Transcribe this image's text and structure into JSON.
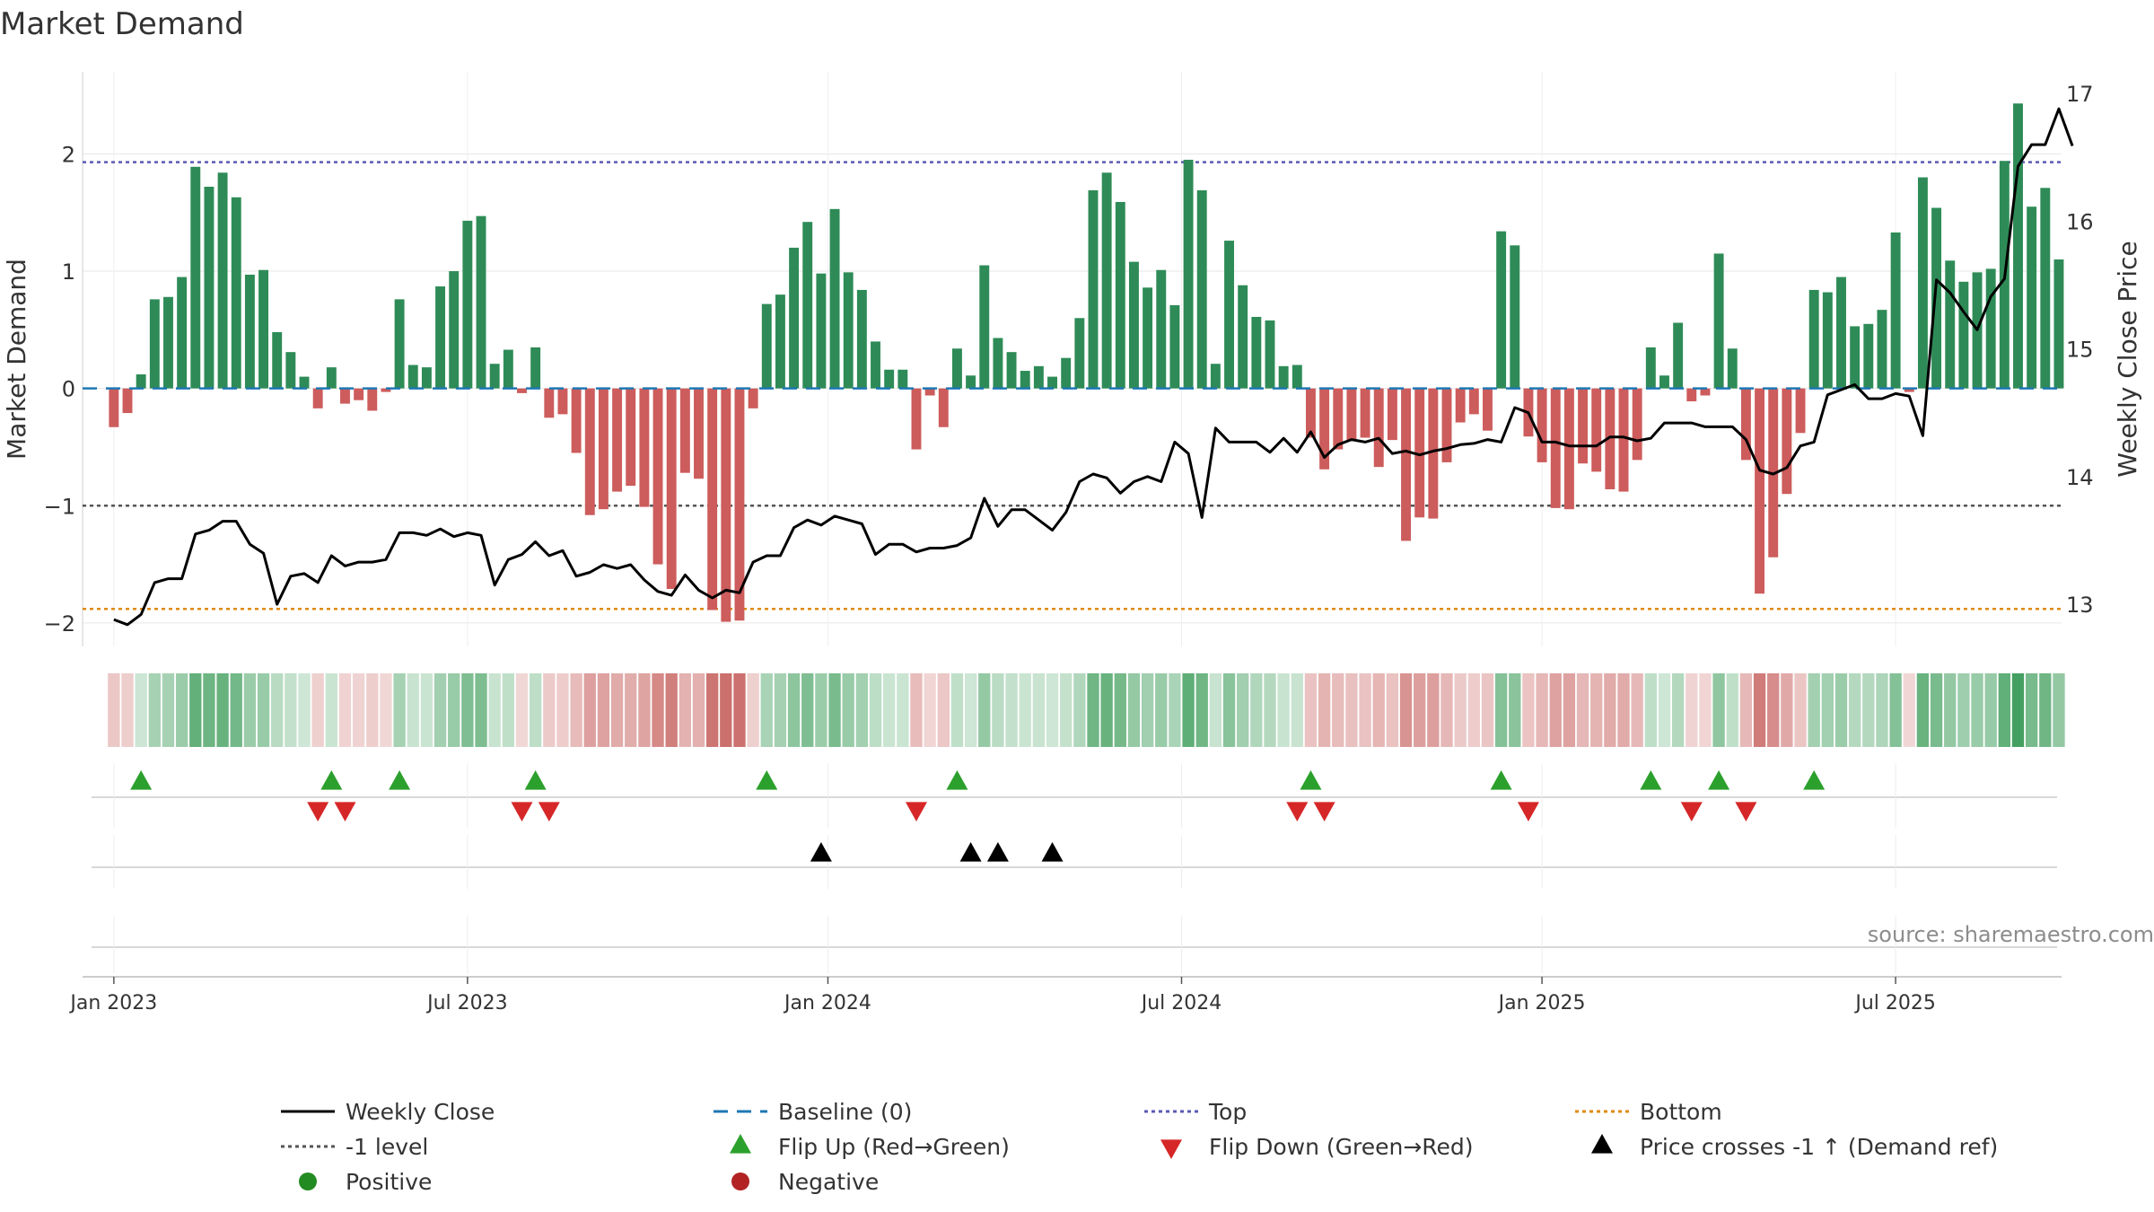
{
  "chart_data": {
    "type": "bar",
    "title": "Market Demand",
    "ylabel_left": "Market Demand",
    "ylabel_right": "Weekly Close Price",
    "ylim_left": [
      -2.2,
      2.7
    ],
    "ylim_right": [
      12.67,
      17.17
    ],
    "yticks_left": [
      {
        "v": 2,
        "label": "2"
      },
      {
        "v": 1,
        "label": "1"
      },
      {
        "v": 0,
        "label": "0"
      },
      {
        "v": -1,
        "label": "−1"
      },
      {
        "v": -2,
        "label": "−2"
      }
    ],
    "yticks_right": [
      {
        "v": 17,
        "label": "17"
      },
      {
        "v": 16,
        "label": "16"
      },
      {
        "v": 15,
        "label": "15"
      },
      {
        "v": 14,
        "label": "14"
      },
      {
        "v": 13,
        "label": "13"
      }
    ],
    "x_range": [
      -2.3,
      143.2
    ],
    "x_ticks": [
      {
        "x": 0,
        "label": "Jan 2023"
      },
      {
        "x": 26,
        "label": "Jul 2023"
      },
      {
        "x": 52.5,
        "label": "Jan 2024"
      },
      {
        "x": 78.5,
        "label": "Jul 2024"
      },
      {
        "x": 105,
        "label": "Jan 2025"
      },
      {
        "x": 131,
        "label": "Jul 2025"
      }
    ],
    "reference_lines": {
      "top": 1.93,
      "minus_one": -1.0,
      "bottom": -1.88,
      "baseline": 0
    },
    "demand": [
      -0.33,
      -0.21,
      0.12,
      0.76,
      0.78,
      0.95,
      1.89,
      1.72,
      1.84,
      1.63,
      0.97,
      1.01,
      0.48,
      0.31,
      0.1,
      -0.17,
      0.18,
      -0.13,
      -0.1,
      -0.19,
      -0.03,
      0.76,
      0.2,
      0.18,
      0.87,
      1.0,
      1.43,
      1.47,
      0.21,
      0.33,
      -0.04,
      0.35,
      -0.25,
      -0.22,
      -0.55,
      -1.08,
      -1.03,
      -0.88,
      -0.83,
      -1.01,
      -1.5,
      -1.71,
      -0.72,
      -0.77,
      -1.89,
      -1.99,
      -1.98,
      -0.17,
      0.72,
      0.8,
      1.2,
      1.42,
      0.98,
      1.53,
      0.99,
      0.84,
      0.4,
      0.16,
      0.16,
      -0.52,
      -0.06,
      -0.33,
      0.34,
      0.11,
      1.05,
      0.43,
      0.31,
      0.15,
      0.19,
      0.1,
      0.26,
      0.6,
      1.69,
      1.84,
      1.59,
      1.08,
      0.86,
      1.01,
      0.71,
      1.95,
      1.69,
      0.21,
      1.26,
      0.88,
      0.61,
      0.58,
      0.19,
      0.2,
      -0.42,
      -0.69,
      -0.52,
      -0.45,
      -0.42,
      -0.67,
      -0.44,
      -1.3,
      -1.1,
      -1.11,
      -0.63,
      -0.29,
      -0.22,
      -0.36,
      1.34,
      1.22,
      -0.41,
      -0.63,
      -1.02,
      -1.03,
      -0.64,
      -0.71,
      -0.86,
      -0.88,
      -0.61,
      0.35,
      0.11,
      0.56,
      -0.11,
      -0.06,
      1.15,
      0.34,
      -0.61,
      -1.75,
      -1.44,
      -0.9,
      -0.38,
      0.84,
      0.82,
      0.95,
      0.53,
      0.55,
      0.67,
      1.33,
      -0.03,
      1.8,
      1.54,
      1.09,
      0.91,
      0.99,
      1.02,
      1.94,
      2.43,
      1.55,
      1.71,
      1.1
    ],
    "weekly_close": [
      12.88,
      12.84,
      12.92,
      13.17,
      13.2,
      13.2,
      13.55,
      13.58,
      13.65,
      13.65,
      13.47,
      13.4,
      13.0,
      13.22,
      13.24,
      13.17,
      13.38,
      13.3,
      13.33,
      13.33,
      13.35,
      13.56,
      13.56,
      13.54,
      13.59,
      13.53,
      13.56,
      13.54,
      13.15,
      13.35,
      13.39,
      13.49,
      13.38,
      13.42,
      13.22,
      13.25,
      13.31,
      13.28,
      13.31,
      13.19,
      13.1,
      13.07,
      13.23,
      13.11,
      13.05,
      13.11,
      13.09,
      13.33,
      13.38,
      13.38,
      13.6,
      13.66,
      13.62,
      13.69,
      13.66,
      13.63,
      13.39,
      13.47,
      13.47,
      13.41,
      13.44,
      13.44,
      13.46,
      13.52,
      13.83,
      13.61,
      13.74,
      13.74,
      13.66,
      13.58,
      13.72,
      13.96,
      14.02,
      13.99,
      13.87,
      13.96,
      14.0,
      13.96,
      14.27,
      14.18,
      13.68,
      14.38,
      14.27,
      14.27,
      14.27,
      14.19,
      14.3,
      14.19,
      14.35,
      14.15,
      14.25,
      14.29,
      14.27,
      14.3,
      14.18,
      14.2,
      14.17,
      14.2,
      14.22,
      14.25,
      14.26,
      14.29,
      14.27,
      14.54,
      14.5,
      14.27,
      14.27,
      14.24,
      14.24,
      14.24,
      14.31,
      14.31,
      14.28,
      14.3,
      14.42,
      14.42,
      14.42,
      14.39,
      14.39,
      14.39,
      14.29,
      14.05,
      14.02,
      14.07,
      14.24,
      14.27,
      14.64,
      14.68,
      14.72,
      14.61,
      14.61,
      14.65,
      14.63,
      14.32,
      15.54,
      15.44,
      15.29,
      15.15,
      15.41,
      15.55,
      16.43,
      16.6,
      16.6,
      16.88,
      16.59
    ],
    "flip_up": [
      2,
      16,
      21,
      31,
      48,
      62,
      88,
      102,
      113,
      118,
      125
    ],
    "flip_down": [
      15,
      17,
      30,
      32,
      59,
      87,
      89,
      104,
      116,
      120
    ],
    "price_cross": [
      52,
      63,
      65,
      69
    ],
    "source_text": "source: sharemaestro.com",
    "legend": [
      {
        "label": "Weekly Close",
        "kind": "line",
        "color": "#000000"
      },
      {
        "label": "Baseline (0)",
        "kind": "dash",
        "color": "#1f77b4"
      },
      {
        "label": "Top",
        "kind": "dotted",
        "color": "#5a5ab5"
      },
      {
        "label": "Bottom",
        "kind": "dotted",
        "color": "#e08a0b"
      },
      {
        "label": "-1 level",
        "kind": "dotted",
        "color": "#555555"
      },
      {
        "label": "Flip Up (Red→Green)",
        "kind": "tri-up",
        "color": "#2ca02c"
      },
      {
        "label": "Flip Down (Green→Red)",
        "kind": "tri-down",
        "color": "#d62728"
      },
      {
        "label": "Price crosses -1 ↑ (Demand ref)",
        "kind": "tri-up",
        "color": "#000000"
      },
      {
        "label": "Positive",
        "kind": "dot",
        "color": "#228b22"
      },
      {
        "label": "Negative",
        "kind": "dot",
        "color": "#b22222"
      }
    ],
    "colors": {
      "positive": "#2e8b57",
      "negative": "#cd5c5c",
      "heat_positive": "#3a9b57",
      "heat_negative": "#c0504d",
      "grid": "#e6e6e6",
      "axis_text": "#333333"
    }
  }
}
